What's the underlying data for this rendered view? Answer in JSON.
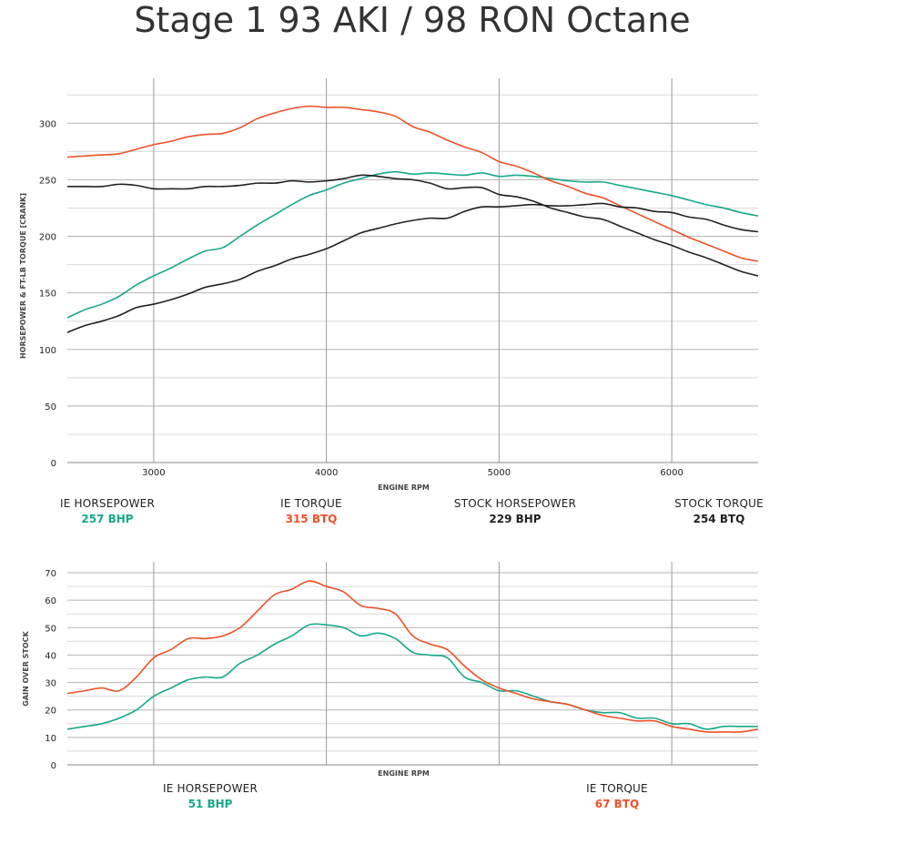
{
  "title": "Stage 1 93 AKI / 98 RON Octane",
  "colors": {
    "ie_hp": "#18a889",
    "ie_tq": "#ee5127",
    "stock_hp": "#222222",
    "stock_tq": "#222222",
    "grid": "#bdbdbd",
    "vgrid": "#9a9a9a"
  },
  "chart_data": [
    {
      "type": "line",
      "title": "Stage 1 93 AKI / 98 RON Octane",
      "xlabel": "ENGINE RPM",
      "ylabel": "HORSEPOWER & FT-LB TORQUE [CRANK]",
      "xlim": [
        2500,
        6500
      ],
      "ylim": [
        0,
        330
      ],
      "xticks": [
        3000,
        4000,
        5000,
        6000
      ],
      "yticks": [
        0,
        50,
        100,
        150,
        200,
        250,
        300
      ],
      "series": [
        {
          "name": "IE HORSEPOWER",
          "color": "#18a889",
          "points": [
            [
              2500,
              128
            ],
            [
              2600,
              135
            ],
            [
              2700,
              140
            ],
            [
              2800,
              147
            ],
            [
              2900,
              157
            ],
            [
              3000,
              165
            ],
            [
              3100,
              172
            ],
            [
              3200,
              180
            ],
            [
              3300,
              187
            ],
            [
              3400,
              190
            ],
            [
              3500,
              200
            ],
            [
              3600,
              210
            ],
            [
              3700,
              219
            ],
            [
              3800,
              228
            ],
            [
              3900,
              236
            ],
            [
              4000,
              241
            ],
            [
              4100,
              247
            ],
            [
              4200,
              251
            ],
            [
              4300,
              255
            ],
            [
              4400,
              257
            ],
            [
              4500,
              255
            ],
            [
              4600,
              256
            ],
            [
              4700,
              255
            ],
            [
              4800,
              254
            ],
            [
              4900,
              256
            ],
            [
              5000,
              253
            ],
            [
              5100,
              254
            ],
            [
              5200,
              253
            ],
            [
              5300,
              251
            ],
            [
              5400,
              249
            ],
            [
              5500,
              248
            ],
            [
              5600,
              248
            ],
            [
              5700,
              245
            ],
            [
              5800,
              242
            ],
            [
              5900,
              239
            ],
            [
              6000,
              236
            ],
            [
              6100,
              232
            ],
            [
              6200,
              228
            ],
            [
              6300,
              225
            ],
            [
              6400,
              221
            ],
            [
              6500,
              218
            ]
          ]
        },
        {
          "name": "IE TORQUE",
          "color": "#ee5127",
          "points": [
            [
              2500,
              270
            ],
            [
              2600,
              271
            ],
            [
              2700,
              272
            ],
            [
              2800,
              273
            ],
            [
              2900,
              277
            ],
            [
              3000,
              281
            ],
            [
              3100,
              284
            ],
            [
              3200,
              288
            ],
            [
              3300,
              290
            ],
            [
              3400,
              291
            ],
            [
              3500,
              296
            ],
            [
              3600,
              304
            ],
            [
              3700,
              309
            ],
            [
              3800,
              313
            ],
            [
              3900,
              315
            ],
            [
              4000,
              314
            ],
            [
              4100,
              314
            ],
            [
              4200,
              312
            ],
            [
              4300,
              310
            ],
            [
              4400,
              306
            ],
            [
              4500,
              297
            ],
            [
              4600,
              292
            ],
            [
              4700,
              285
            ],
            [
              4800,
              279
            ],
            [
              4900,
              274
            ],
            [
              5000,
              266
            ],
            [
              5100,
              262
            ],
            [
              5200,
              256
            ],
            [
              5300,
              249
            ],
            [
              5400,
              244
            ],
            [
              5500,
              238
            ],
            [
              5600,
              234
            ],
            [
              5700,
              227
            ],
            [
              5800,
              220
            ],
            [
              5900,
              213
            ],
            [
              6000,
              206
            ],
            [
              6100,
              199
            ],
            [
              6200,
              193
            ],
            [
              6300,
              187
            ],
            [
              6400,
              181
            ],
            [
              6500,
              178
            ]
          ]
        },
        {
          "name": "STOCK HORSEPOWER",
          "color": "#222222",
          "points": [
            [
              2500,
              115
            ],
            [
              2600,
              121
            ],
            [
              2700,
              125
            ],
            [
              2800,
              130
            ],
            [
              2900,
              137
            ],
            [
              3000,
              140
            ],
            [
              3100,
              144
            ],
            [
              3200,
              149
            ],
            [
              3300,
              155
            ],
            [
              3400,
              158
            ],
            [
              3500,
              162
            ],
            [
              3600,
              169
            ],
            [
              3700,
              174
            ],
            [
              3800,
              180
            ],
            [
              3900,
              184
            ],
            [
              4000,
              189
            ],
            [
              4100,
              196
            ],
            [
              4200,
              203
            ],
            [
              4300,
              207
            ],
            [
              4400,
              211
            ],
            [
              4500,
              214
            ],
            [
              4600,
              216
            ],
            [
              4700,
              216
            ],
            [
              4800,
              222
            ],
            [
              4900,
              226
            ],
            [
              5000,
              226
            ],
            [
              5100,
              227
            ],
            [
              5200,
              228
            ],
            [
              5300,
              227
            ],
            [
              5400,
              227
            ],
            [
              5500,
              228
            ],
            [
              5600,
              229
            ],
            [
              5700,
              226
            ],
            [
              5800,
              225
            ],
            [
              5900,
              222
            ],
            [
              6000,
              221
            ],
            [
              6100,
              217
            ],
            [
              6200,
              215
            ],
            [
              6300,
              210
            ],
            [
              6400,
              206
            ],
            [
              6500,
              204
            ]
          ]
        },
        {
          "name": "STOCK TORQUE",
          "color": "#222222",
          "points": [
            [
              2500,
              244
            ],
            [
              2600,
              244
            ],
            [
              2700,
              244
            ],
            [
              2800,
              246
            ],
            [
              2900,
              245
            ],
            [
              3000,
              242
            ],
            [
              3100,
              242
            ],
            [
              3200,
              242
            ],
            [
              3300,
              244
            ],
            [
              3400,
              244
            ],
            [
              3500,
              245
            ],
            [
              3600,
              247
            ],
            [
              3700,
              247
            ],
            [
              3800,
              249
            ],
            [
              3900,
              248
            ],
            [
              4000,
              249
            ],
            [
              4100,
              251
            ],
            [
              4200,
              254
            ],
            [
              4300,
              253
            ],
            [
              4400,
              251
            ],
            [
              4500,
              250
            ],
            [
              4600,
              247
            ],
            [
              4700,
              242
            ],
            [
              4800,
              243
            ],
            [
              4900,
              243
            ],
            [
              5000,
              237
            ],
            [
              5100,
              235
            ],
            [
              5200,
              231
            ],
            [
              5300,
              225
            ],
            [
              5400,
              221
            ],
            [
              5500,
              217
            ],
            [
              5600,
              215
            ],
            [
              5700,
              209
            ],
            [
              5800,
              203
            ],
            [
              5900,
              197
            ],
            [
              6000,
              192
            ],
            [
              6100,
              186
            ],
            [
              6200,
              181
            ],
            [
              6300,
              175
            ],
            [
              6400,
              169
            ],
            [
              6500,
              165
            ]
          ]
        }
      ]
    },
    {
      "type": "line",
      "xlabel": "ENGINE RPM",
      "ylabel": "GAIN OVER STOCK",
      "xlim": [
        2500,
        6500
      ],
      "ylim": [
        0,
        70
      ],
      "xticks": [
        3000,
        4000,
        5000,
        6000
      ],
      "yticks": [
        0,
        10,
        20,
        30,
        40,
        50,
        60,
        70
      ],
      "series": [
        {
          "name": "IE HORSEPOWER",
          "color": "#18a889",
          "points": [
            [
              2500,
              13
            ],
            [
              2600,
              14
            ],
            [
              2700,
              15
            ],
            [
              2800,
              17
            ],
            [
              2900,
              20
            ],
            [
              3000,
              25
            ],
            [
              3100,
              28
            ],
            [
              3200,
              31
            ],
            [
              3300,
              32
            ],
            [
              3400,
              32
            ],
            [
              3500,
              37
            ],
            [
              3600,
              40
            ],
            [
              3700,
              44
            ],
            [
              3800,
              47
            ],
            [
              3900,
              51
            ],
            [
              4000,
              51
            ],
            [
              4100,
              50
            ],
            [
              4200,
              47
            ],
            [
              4300,
              48
            ],
            [
              4400,
              46
            ],
            [
              4500,
              41
            ],
            [
              4600,
              40
            ],
            [
              4700,
              39
            ],
            [
              4800,
              32
            ],
            [
              4900,
              30
            ],
            [
              5000,
              27
            ],
            [
              5100,
              27
            ],
            [
              5200,
              25
            ],
            [
              5300,
              23
            ],
            [
              5400,
              22
            ],
            [
              5500,
              20
            ],
            [
              5600,
              19
            ],
            [
              5700,
              19
            ],
            [
              5800,
              17
            ],
            [
              5900,
              17
            ],
            [
              6000,
              15
            ],
            [
              6100,
              15
            ],
            [
              6200,
              13
            ],
            [
              6300,
              14
            ],
            [
              6400,
              14
            ],
            [
              6500,
              14
            ]
          ]
        },
        {
          "name": "IE TORQUE",
          "color": "#ee5127",
          "points": [
            [
              2500,
              26
            ],
            [
              2600,
              27
            ],
            [
              2700,
              28
            ],
            [
              2800,
              27
            ],
            [
              2900,
              32
            ],
            [
              3000,
              39
            ],
            [
              3100,
              42
            ],
            [
              3200,
              46
            ],
            [
              3300,
              46
            ],
            [
              3400,
              47
            ],
            [
              3500,
              50
            ],
            [
              3600,
              56
            ],
            [
              3700,
              62
            ],
            [
              3800,
              64
            ],
            [
              3900,
              67
            ],
            [
              4000,
              65
            ],
            [
              4100,
              63
            ],
            [
              4200,
              58
            ],
            [
              4300,
              57
            ],
            [
              4400,
              55
            ],
            [
              4500,
              47
            ],
            [
              4600,
              44
            ],
            [
              4700,
              42
            ],
            [
              4800,
              36
            ],
            [
              4900,
              31
            ],
            [
              5000,
              28
            ],
            [
              5100,
              26
            ],
            [
              5200,
              24
            ],
            [
              5300,
              23
            ],
            [
              5400,
              22
            ],
            [
              5500,
              20
            ],
            [
              5600,
              18
            ],
            [
              5700,
              17
            ],
            [
              5800,
              16
            ],
            [
              5900,
              16
            ],
            [
              6000,
              14
            ],
            [
              6100,
              13
            ],
            [
              6200,
              12
            ],
            [
              6300,
              12
            ],
            [
              6400,
              12
            ],
            [
              6500,
              13
            ]
          ]
        }
      ]
    }
  ],
  "legend_top": [
    {
      "label": "IE HORSEPOWER",
      "value": "257 BHP",
      "color": "#18a889"
    },
    {
      "label": "IE TORQUE",
      "value": "315 BTQ",
      "color": "#ee5127"
    },
    {
      "label": "STOCK HORSEPOWER",
      "value": "229 BHP",
      "color": "#222222"
    },
    {
      "label": "STOCK TORQUE",
      "value": "254 BTQ",
      "color": "#222222"
    }
  ],
  "legend_bottom": [
    {
      "label": "IE HORSEPOWER",
      "value": "51 BHP",
      "color": "#18a889"
    },
    {
      "label": "IE TORQUE",
      "value": "67 BTQ",
      "color": "#ee5127"
    }
  ]
}
